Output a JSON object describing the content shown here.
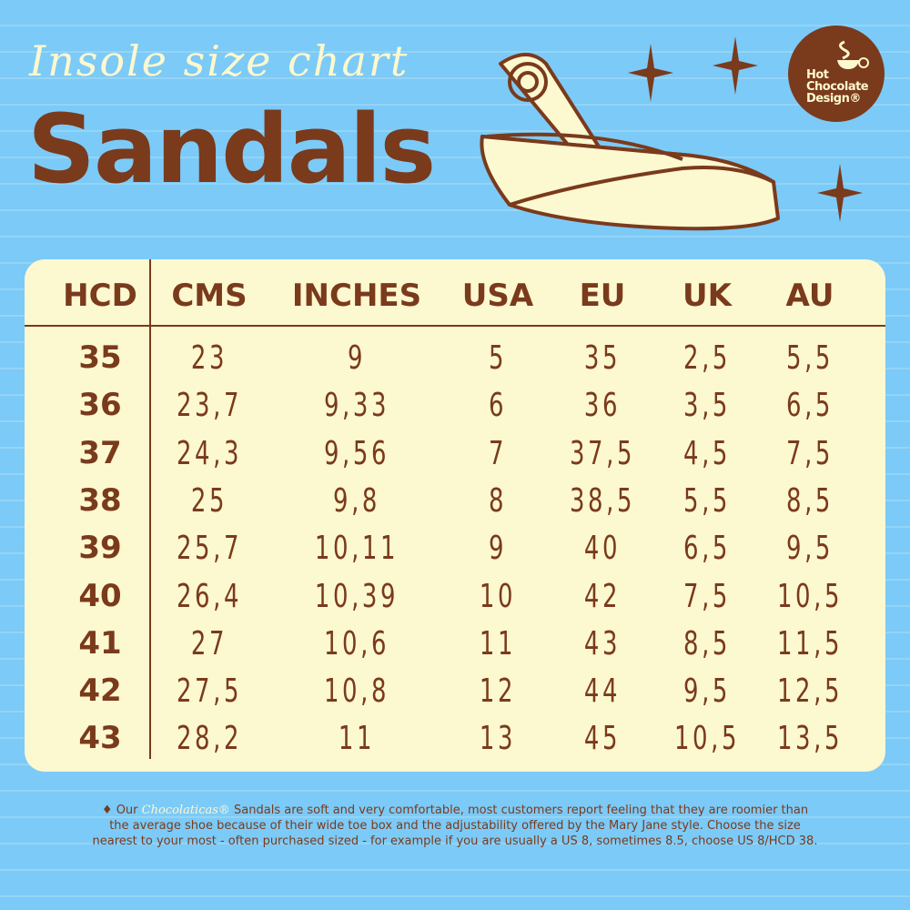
{
  "title": {
    "script": "Insole size chart",
    "main": "Sandals"
  },
  "logo": {
    "lines": [
      "Hot",
      "Chocolate",
      "Design®"
    ]
  },
  "table": {
    "headers": [
      "HCD",
      "CMS",
      "INCHES",
      "USA",
      "EU",
      "UK",
      "AU"
    ],
    "rows": [
      [
        "35",
        "23",
        "9",
        "5",
        "35",
        "2,5",
        "5,5"
      ],
      [
        "36",
        "23,7",
        "9,33",
        "6",
        "36",
        "3,5",
        "6,5"
      ],
      [
        "37",
        "24,3",
        "9,56",
        "7",
        "37,5",
        "4,5",
        "7,5"
      ],
      [
        "38",
        "25",
        "9,8",
        "8",
        "38,5",
        "5,5",
        "8,5"
      ],
      [
        "39",
        "25,7",
        "10,11",
        "9",
        "40",
        "6,5",
        "9,5"
      ],
      [
        "40",
        "26,4",
        "10,39",
        "10",
        "42",
        "7,5",
        "10,5"
      ],
      [
        "41",
        "27",
        "10,6",
        "11",
        "43",
        "8,5",
        "11,5"
      ],
      [
        "42",
        "27,5",
        "10,8",
        "12",
        "44",
        "9,5",
        "12,5"
      ],
      [
        "43",
        "28,2",
        "11",
        "13",
        "45",
        "10,5",
        "13,5"
      ]
    ]
  },
  "footer": {
    "bullet": "♦ Our",
    "brand": "Chocolaticas®",
    "text": "Sandals are soft and very comfortable, most customers report feeling that they are roomier than the average shoe because of their wide toe box and the adjustability offered by the Mary Jane style. Choose the size nearest to your most - often  purchased sized - for example if you are usually a US 8, sometimes 8.5, choose US 8/HCD 38."
  },
  "colors": {
    "background": "#7ccaf7",
    "brown": "#7a3a1c",
    "cream": "#fcf8d0"
  },
  "icons": [
    "sandal-illustration",
    "star-icon",
    "coffee-cup-logo"
  ]
}
